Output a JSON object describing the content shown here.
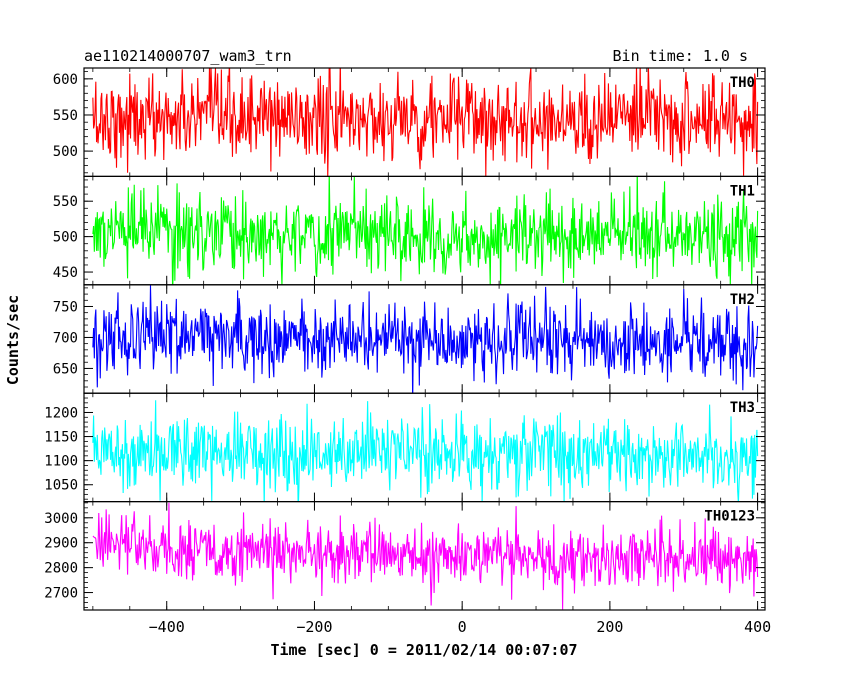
{
  "chart_data": {
    "type": "line",
    "title": "ae110214000707_wam3_trn",
    "bin_time_label": "Bin time: 1.0 s",
    "xlabel": "Time [sec] 0 = 2011/02/14 00:07:07",
    "ylabel": "Counts/sec",
    "xlim": [
      -512,
      410
    ],
    "x_ticks": [
      -400,
      -200,
      0,
      200,
      400
    ],
    "x_step": 1.0,
    "grid": false,
    "panels": [
      {
        "name": "TH0",
        "color": "#ff0000",
        "ylim": [
          465,
          615
        ],
        "y_ticks": [
          500,
          550,
          600
        ],
        "mean": 545,
        "spread": 30,
        "trend": [
          [
            -500,
            545
          ],
          [
            400,
            545
          ]
        ]
      },
      {
        "name": "TH1",
        "color": "#00ff00",
        "ylim": [
          432,
          585
        ],
        "y_ticks": [
          450,
          500,
          550
        ],
        "mean": 506,
        "spread": 28,
        "trend": [
          [
            -500,
            506
          ],
          [
            400,
            500
          ]
        ]
      },
      {
        "name": "TH2",
        "color": "#0000ff",
        "ylim": [
          610,
          785
        ],
        "y_ticks": [
          650,
          700,
          750
        ],
        "mean": 697,
        "spread": 30,
        "trend": [
          [
            -500,
            705
          ],
          [
            400,
            688
          ]
        ]
      },
      {
        "name": "TH3",
        "color": "#00ffff",
        "ylim": [
          1015,
          1240
        ],
        "y_ticks": [
          1050,
          1100,
          1150,
          1200
        ],
        "mean": 1118,
        "spread": 40,
        "trend": [
          [
            -500,
            1125
          ],
          [
            400,
            1110
          ]
        ]
      },
      {
        "name": "TH0123",
        "color": "#ff00ff",
        "ylim": [
          2630,
          3065
        ],
        "y_ticks": [
          2700,
          2800,
          2900,
          3000
        ],
        "mean": 2860,
        "spread": 62,
        "trend": [
          [
            -500,
            2905
          ],
          [
            -300,
            2860
          ],
          [
            0,
            2845
          ],
          [
            400,
            2840
          ]
        ]
      }
    ]
  }
}
